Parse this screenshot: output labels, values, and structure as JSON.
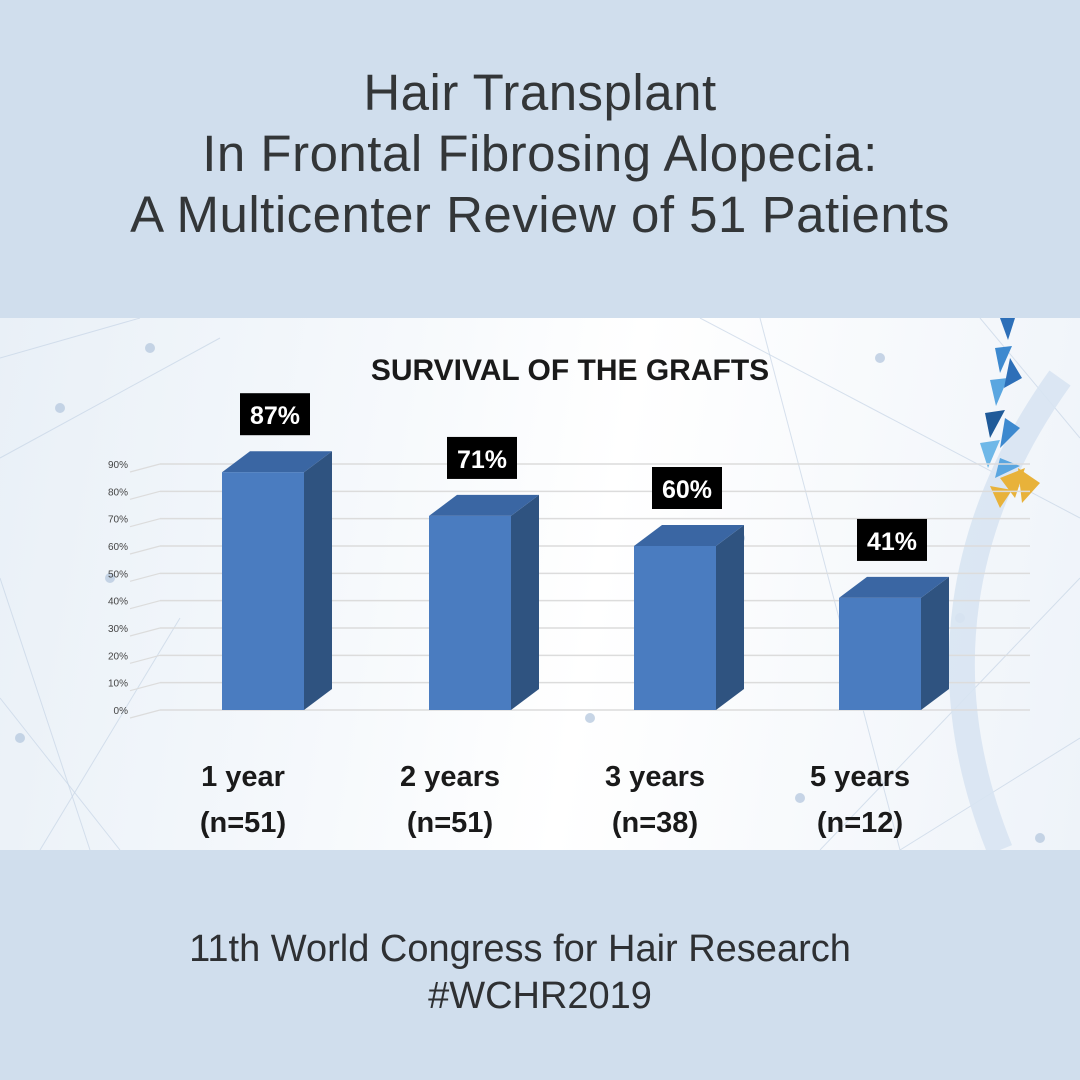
{
  "header": {
    "title_lines": [
      "Hair Transplant",
      "In Frontal Fibrosing Alopecia:",
      "A Multicenter Review of 51 Patients"
    ]
  },
  "footer": {
    "event": "11th World Congress for Hair Research",
    "hashtag": "#WCHR2019"
  },
  "colors": {
    "background": "#d0deed",
    "bar_front": "#4a7cc0",
    "bar_side": "#2f5380",
    "bar_top": "#3a66a3",
    "label_box": "#000000",
    "label_text": "#ffffff"
  },
  "chart_data": {
    "type": "bar",
    "title": "SURVIVAL OF THE GRAFTS",
    "categories": [
      "1 year",
      "2 years",
      "3 years",
      "5 years"
    ],
    "sample_sizes": [
      "(n=51)",
      "(n=51)",
      "(n=38)",
      "(n=12)"
    ],
    "values": [
      87,
      71,
      60,
      41
    ],
    "value_labels": [
      "87%",
      "71%",
      "60%",
      "41%"
    ],
    "yticks": [
      "0%",
      "10%",
      "20%",
      "30%",
      "40%",
      "50%",
      "60%",
      "70%",
      "80%",
      "90%"
    ],
    "ylim": [
      0,
      90
    ],
    "grid": true,
    "xlabel": "",
    "ylabel": ""
  }
}
